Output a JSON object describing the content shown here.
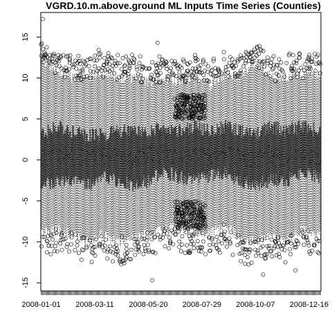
{
  "chart_data": {
    "type": "boxplot",
    "title": "VGRD.10.m.above.ground ML Inputs Time Series (Counties)",
    "xlabel": "",
    "ylabel": "",
    "ylim": [
      -16,
      18
    ],
    "yticks": [
      -15,
      -10,
      -5,
      0,
      5,
      10,
      15
    ],
    "ytick_labels": [
      "-15",
      "-10",
      "-5",
      "0",
      "5",
      "10",
      "15"
    ],
    "x_categories_count": 366,
    "x_first_date": "2008-01-01",
    "xtick_labels": [
      "2008-01-01",
      "2008-03-11",
      "2008-05-20",
      "2008-07-29",
      "2008-10-07",
      "2008-12-16"
    ],
    "xtick_day_index": [
      0,
      70,
      140,
      210,
      280,
      350
    ],
    "series_envelope": {
      "day_index": [
        0,
        20,
        40,
        60,
        80,
        100,
        120,
        140,
        160,
        180,
        200,
        220,
        240,
        260,
        280,
        300,
        320,
        340,
        365
      ],
      "median": [
        0.0,
        0.8,
        0.5,
        0.2,
        0.5,
        0.3,
        0.0,
        0.5,
        0.8,
        0.5,
        0.5,
        0.3,
        1.0,
        0.5,
        0.0,
        0.8,
        0.3,
        0.8,
        0.5
      ],
      "q1": [
        -3.0,
        -2.5,
        -2.5,
        -3.0,
        -2.0,
        -2.5,
        -3.0,
        -2.5,
        -1.5,
        -2.0,
        -2.5,
        -2.0,
        -1.5,
        -2.5,
        -3.0,
        -2.5,
        -2.5,
        -1.5,
        -2.0
      ],
      "q3": [
        3.0,
        4.0,
        3.5,
        3.0,
        3.0,
        3.5,
        3.5,
        3.5,
        4.0,
        3.5,
        4.0,
        3.5,
        4.0,
        3.5,
        3.0,
        4.0,
        3.5,
        4.0,
        3.5
      ],
      "whisker_low": [
        -9.0,
        -8.5,
        -9.0,
        -10.0,
        -9.0,
        -10.0,
        -9.5,
        -9.0,
        -8.5,
        -8.0,
        -9.0,
        -9.0,
        -8.0,
        -9.5,
        -10.0,
        -9.5,
        -10.0,
        -8.5,
        -9.0
      ],
      "whisker_high": [
        12.0,
        11.0,
        10.0,
        10.0,
        10.5,
        10.0,
        10.0,
        9.5,
        10.0,
        9.5,
        10.0,
        9.0,
        10.5,
        10.0,
        12.0,
        10.0,
        10.0,
        10.5,
        10.5
      ]
    },
    "outlier_extremes": [
      {
        "day_index": 2,
        "value": 17.2
      },
      {
        "day_index": 100,
        "value": 12.8
      },
      {
        "day_index": 145,
        "value": -14.7
      },
      {
        "day_index": 152,
        "value": 14.3
      },
      {
        "day_index": 285,
        "value": 13.9
      },
      {
        "day_index": 290,
        "value": -14.0
      },
      {
        "day_index": 332,
        "value": -13.5
      }
    ]
  }
}
